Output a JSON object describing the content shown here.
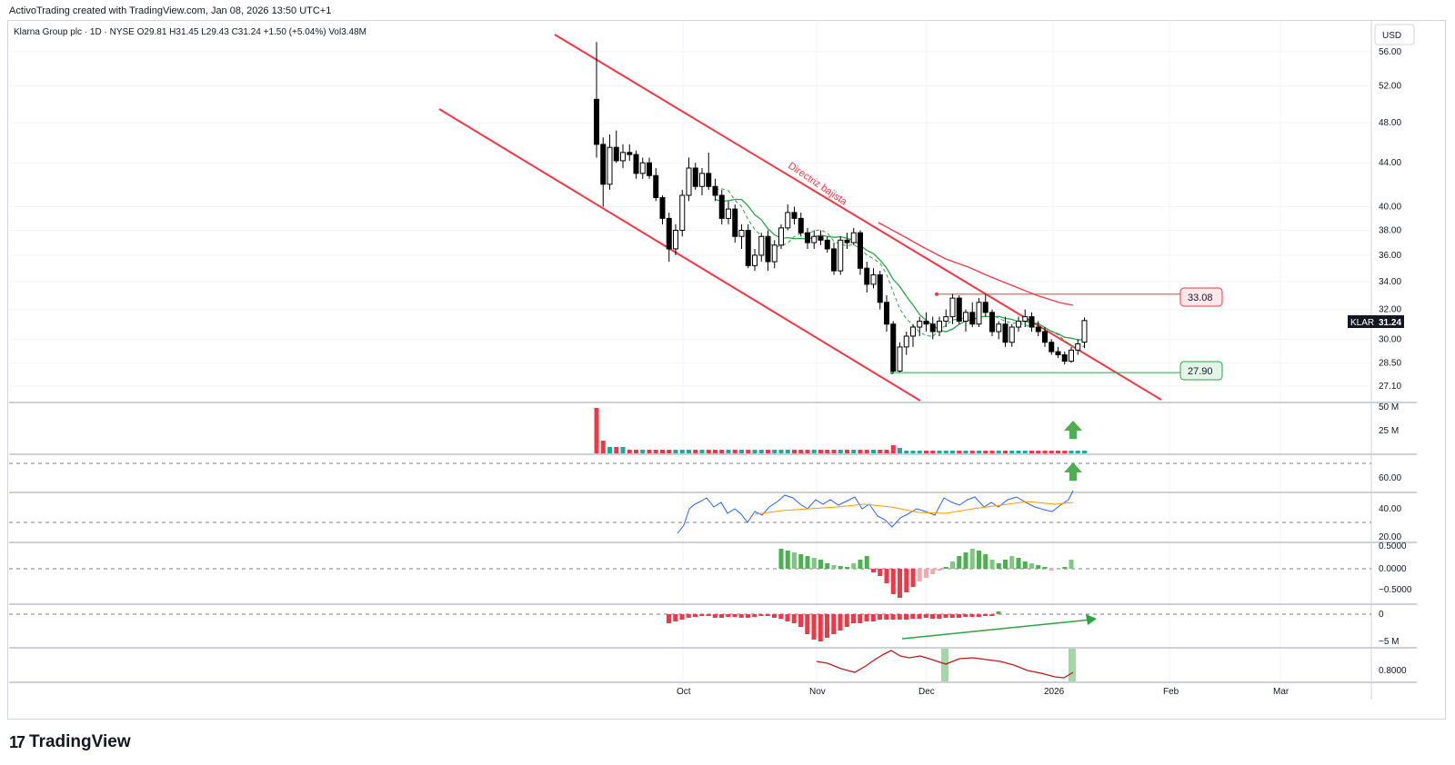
{
  "header": {
    "credit": "ActivoTrading created with TradingView.com, Jan 08, 2026 13:50 UTC+1"
  },
  "symbol_line": "Klarna Group plc · 1D · NYSE  O29.81  H31.45  L29.43  C31.24  +1.50 (+5.04%)  Vol3.48M",
  "brand": {
    "logo_mark": "17",
    "logo_text": "TradingView"
  },
  "colors": {
    "bull": "#000000",
    "bear": "#000000",
    "channel": "#f23645",
    "ma_green": "#2aa246",
    "rsi": "#2962ff",
    "rsi_ma": "#ff9800",
    "up_arrow": "#4caf50"
  },
  "chart_data": {
    "type": "candlestick",
    "currency": "USD",
    "y_ticks": [
      "56.00",
      "52.00",
      "48.00",
      "44.00",
      "40.00",
      "38.00",
      "36.00",
      "34.00",
      "32.00",
      "30.00",
      "28.50",
      "27.10"
    ],
    "y_tick_values": [
      56,
      52,
      48,
      44,
      40,
      38,
      36,
      34,
      32,
      30,
      28.5,
      27.1
    ],
    "x_ticks": [
      "Oct",
      "Nov",
      "Dec",
      "2026",
      "Feb",
      "Mar"
    ],
    "last_price_label": {
      "ticker": "KLAR",
      "value": "31.24"
    },
    "resistance_label": "33.08",
    "support_label": "27.90",
    "annotation": "Directriz bajista",
    "candles": [
      {
        "o": 50.5,
        "h": 57.2,
        "l": 44.5,
        "c": 45.8
      },
      {
        "o": 45.8,
        "h": 46.5,
        "l": 40.0,
        "c": 42.0
      },
      {
        "o": 42.0,
        "h": 46.8,
        "l": 41.5,
        "c": 45.5
      },
      {
        "o": 45.5,
        "h": 47.2,
        "l": 44.0,
        "c": 44.2
      },
      {
        "o": 44.2,
        "h": 45.8,
        "l": 43.5,
        "c": 45.0
      },
      {
        "o": 45.0,
        "h": 45.8,
        "l": 44.2,
        "c": 44.8
      },
      {
        "o": 44.8,
        "h": 45.2,
        "l": 42.5,
        "c": 43.0
      },
      {
        "o": 43.0,
        "h": 44.5,
        "l": 42.5,
        "c": 44.0
      },
      {
        "o": 44.0,
        "h": 44.5,
        "l": 42.5,
        "c": 42.8
      },
      {
        "o": 42.8,
        "h": 43.5,
        "l": 40.5,
        "c": 40.8
      },
      {
        "o": 40.8,
        "h": 41.0,
        "l": 38.5,
        "c": 39.0
      },
      {
        "o": 39.0,
        "h": 39.5,
        "l": 35.5,
        "c": 36.5
      },
      {
        "o": 36.5,
        "h": 38.5,
        "l": 36.0,
        "c": 38.0
      },
      {
        "o": 38.0,
        "h": 41.5,
        "l": 37.5,
        "c": 41.0
      },
      {
        "o": 41.0,
        "h": 44.5,
        "l": 40.5,
        "c": 43.5
      },
      {
        "o": 43.5,
        "h": 44.0,
        "l": 41.5,
        "c": 41.8
      },
      {
        "o": 41.8,
        "h": 43.5,
        "l": 41.0,
        "c": 43.0
      },
      {
        "o": 43.0,
        "h": 45.0,
        "l": 41.5,
        "c": 41.8
      },
      {
        "o": 41.8,
        "h": 42.5,
        "l": 40.5,
        "c": 41.0
      },
      {
        "o": 41.0,
        "h": 41.5,
        "l": 38.5,
        "c": 39.0
      },
      {
        "o": 39.0,
        "h": 40.5,
        "l": 38.5,
        "c": 39.8
      },
      {
        "o": 39.8,
        "h": 40.2,
        "l": 37.0,
        "c": 37.5
      },
      {
        "o": 37.5,
        "h": 38.5,
        "l": 36.5,
        "c": 38.0
      },
      {
        "o": 38.0,
        "h": 38.5,
        "l": 35.0,
        "c": 35.2
      },
      {
        "o": 35.2,
        "h": 36.5,
        "l": 34.8,
        "c": 36.0
      },
      {
        "o": 36.0,
        "h": 37.8,
        "l": 35.5,
        "c": 37.5
      },
      {
        "o": 37.5,
        "h": 38.0,
        "l": 34.8,
        "c": 35.5
      },
      {
        "o": 35.5,
        "h": 37.2,
        "l": 35.0,
        "c": 36.8
      },
      {
        "o": 36.8,
        "h": 38.5,
        "l": 36.5,
        "c": 38.2
      },
      {
        "o": 38.2,
        "h": 40.2,
        "l": 38.0,
        "c": 39.5
      },
      {
        "o": 39.5,
        "h": 40.0,
        "l": 38.5,
        "c": 39.0
      },
      {
        "o": 39.0,
        "h": 39.5,
        "l": 37.5,
        "c": 37.8
      },
      {
        "o": 37.8,
        "h": 38.2,
        "l": 36.5,
        "c": 37.0
      },
      {
        "o": 37.0,
        "h": 38.0,
        "l": 36.5,
        "c": 37.5
      },
      {
        "o": 37.5,
        "h": 38.0,
        "l": 36.8,
        "c": 37.2
      },
      {
        "o": 37.2,
        "h": 37.5,
        "l": 36.2,
        "c": 36.5
      },
      {
        "o": 36.5,
        "h": 37.0,
        "l": 34.5,
        "c": 34.8
      },
      {
        "o": 34.8,
        "h": 37.5,
        "l": 34.5,
        "c": 37.2
      },
      {
        "o": 37.2,
        "h": 37.8,
        "l": 36.5,
        "c": 37.0
      },
      {
        "o": 37.0,
        "h": 38.2,
        "l": 36.8,
        "c": 37.8
      },
      {
        "o": 37.8,
        "h": 38.0,
        "l": 34.5,
        "c": 35.0
      },
      {
        "o": 35.0,
        "h": 35.5,
        "l": 33.2,
        "c": 33.8
      },
      {
        "o": 33.8,
        "h": 35.0,
        "l": 33.5,
        "c": 34.5
      },
      {
        "o": 34.5,
        "h": 34.8,
        "l": 32.0,
        "c": 32.5
      },
      {
        "o": 32.5,
        "h": 33.0,
        "l": 30.5,
        "c": 31.0
      },
      {
        "o": 31.0,
        "h": 31.2,
        "l": 27.9,
        "c": 28.0
      },
      {
        "o": 28.0,
        "h": 29.8,
        "l": 27.9,
        "c": 29.5
      },
      {
        "o": 29.5,
        "h": 30.5,
        "l": 29.0,
        "c": 30.2
      },
      {
        "o": 30.2,
        "h": 31.0,
        "l": 29.5,
        "c": 30.8
      },
      {
        "o": 30.8,
        "h": 31.5,
        "l": 30.2,
        "c": 31.2
      },
      {
        "o": 31.2,
        "h": 31.8,
        "l": 30.5,
        "c": 31.0
      },
      {
        "o": 31.0,
        "h": 31.5,
        "l": 30.0,
        "c": 30.5
      },
      {
        "o": 30.5,
        "h": 31.5,
        "l": 30.2,
        "c": 31.2
      },
      {
        "o": 31.2,
        "h": 32.0,
        "l": 30.8,
        "c": 31.5
      },
      {
        "o": 31.5,
        "h": 33.1,
        "l": 31.0,
        "c": 32.8
      },
      {
        "o": 32.8,
        "h": 33.0,
        "l": 31.0,
        "c": 31.2
      },
      {
        "o": 31.2,
        "h": 32.0,
        "l": 30.5,
        "c": 31.8
      },
      {
        "o": 31.8,
        "h": 32.5,
        "l": 30.8,
        "c": 31.0
      },
      {
        "o": 31.0,
        "h": 32.8,
        "l": 30.8,
        "c": 32.5
      },
      {
        "o": 32.5,
        "h": 33.1,
        "l": 31.5,
        "c": 31.8
      },
      {
        "o": 31.8,
        "h": 32.0,
        "l": 30.2,
        "c": 30.5
      },
      {
        "o": 30.5,
        "h": 31.2,
        "l": 30.0,
        "c": 31.0
      },
      {
        "o": 31.0,
        "h": 31.5,
        "l": 29.5,
        "c": 29.8
      },
      {
        "o": 29.8,
        "h": 31.0,
        "l": 29.5,
        "c": 30.8
      },
      {
        "o": 30.8,
        "h": 31.5,
        "l": 30.5,
        "c": 31.2
      },
      {
        "o": 31.2,
        "h": 32.0,
        "l": 30.8,
        "c": 31.5
      },
      {
        "o": 31.5,
        "h": 31.8,
        "l": 30.5,
        "c": 30.8
      },
      {
        "o": 30.8,
        "h": 31.2,
        "l": 30.2,
        "c": 30.5
      },
      {
        "o": 30.5,
        "h": 30.8,
        "l": 29.5,
        "c": 29.8
      },
      {
        "o": 29.8,
        "h": 30.0,
        "l": 29.0,
        "c": 29.2
      },
      {
        "o": 29.2,
        "h": 29.5,
        "l": 28.8,
        "c": 29.0
      },
      {
        "o": 29.0,
        "h": 29.2,
        "l": 28.4,
        "c": 28.6
      },
      {
        "o": 28.6,
        "h": 29.5,
        "l": 28.5,
        "c": 29.3
      },
      {
        "o": 29.3,
        "h": 30.0,
        "l": 29.0,
        "c": 29.7
      },
      {
        "o": 29.81,
        "h": 31.45,
        "l": 29.43,
        "c": 31.24
      }
    ],
    "volume_ticks": [
      "50 M",
      "25 M"
    ],
    "rsi_ticks": [
      "60.00",
      "40.00",
      "20.00"
    ],
    "osc1_ticks": [
      "0.5000",
      "0.0000",
      "−0.5000"
    ],
    "osc2_ticks": [
      "0",
      "−5 M"
    ],
    "osc3_ticks": [
      "0.8000"
    ]
  }
}
